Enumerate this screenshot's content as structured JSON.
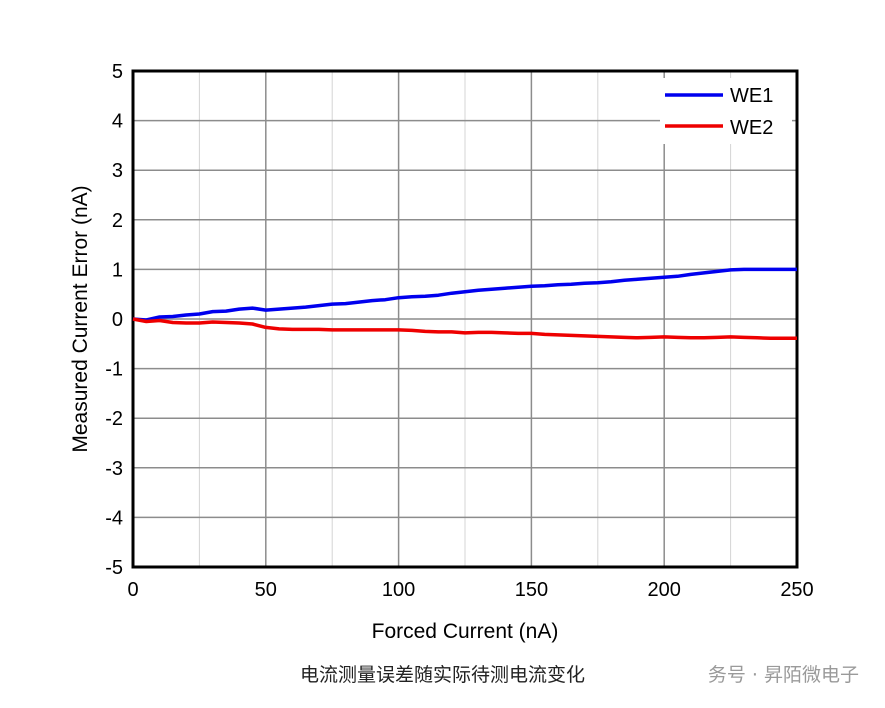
{
  "chart_data": {
    "type": "line",
    "xlabel": "Forced Current (nA)",
    "ylabel": "Measured Current Error (nA)",
    "xlim": [
      0,
      250
    ],
    "ylim": [
      -5,
      5
    ],
    "x_major_ticks": [
      0,
      50,
      100,
      150,
      200,
      250
    ],
    "x_minor_ticks": [
      25,
      75,
      125,
      175,
      225
    ],
    "y_ticks": [
      -5,
      -4,
      -3,
      -2,
      -1,
      0,
      1,
      2,
      3,
      4,
      5
    ],
    "grid": true,
    "legend_position": "top-right",
    "x": [
      0,
      5,
      10,
      15,
      20,
      25,
      30,
      35,
      40,
      45,
      50,
      55,
      60,
      65,
      70,
      75,
      80,
      85,
      90,
      95,
      100,
      105,
      110,
      115,
      120,
      125,
      130,
      135,
      140,
      145,
      150,
      155,
      160,
      165,
      170,
      175,
      180,
      185,
      190,
      195,
      200,
      205,
      210,
      215,
      220,
      225,
      230,
      235,
      240,
      245,
      250
    ],
    "series": [
      {
        "name": "WE1",
        "color": "#0000ee",
        "values": [
          0.0,
          -0.02,
          0.04,
          0.05,
          0.08,
          0.1,
          0.15,
          0.16,
          0.2,
          0.22,
          0.18,
          0.2,
          0.22,
          0.24,
          0.27,
          0.3,
          0.31,
          0.34,
          0.37,
          0.39,
          0.43,
          0.45,
          0.46,
          0.48,
          0.52,
          0.55,
          0.58,
          0.6,
          0.62,
          0.64,
          0.66,
          0.67,
          0.69,
          0.7,
          0.72,
          0.73,
          0.75,
          0.78,
          0.8,
          0.82,
          0.84,
          0.86,
          0.9,
          0.93,
          0.96,
          0.99,
          1.0,
          1.0,
          1.0,
          1.0,
          1.0
        ]
      },
      {
        "name": "WE2",
        "color": "#ee0000",
        "values": [
          0.0,
          -0.05,
          -0.03,
          -0.07,
          -0.08,
          -0.08,
          -0.06,
          -0.07,
          -0.08,
          -0.1,
          -0.17,
          -0.2,
          -0.21,
          -0.21,
          -0.21,
          -0.22,
          -0.22,
          -0.22,
          -0.22,
          -0.22,
          -0.22,
          -0.23,
          -0.25,
          -0.26,
          -0.26,
          -0.28,
          -0.27,
          -0.27,
          -0.28,
          -0.29,
          -0.29,
          -0.31,
          -0.32,
          -0.33,
          -0.34,
          -0.35,
          -0.36,
          -0.37,
          -0.38,
          -0.37,
          -0.36,
          -0.37,
          -0.38,
          -0.38,
          -0.37,
          -0.36,
          -0.37,
          -0.38,
          -0.39,
          -0.39,
          -0.39
        ]
      }
    ]
  },
  "caption": "电流测量误差随实际待测电流变化",
  "watermark": "务号 · 昇陌微电子"
}
